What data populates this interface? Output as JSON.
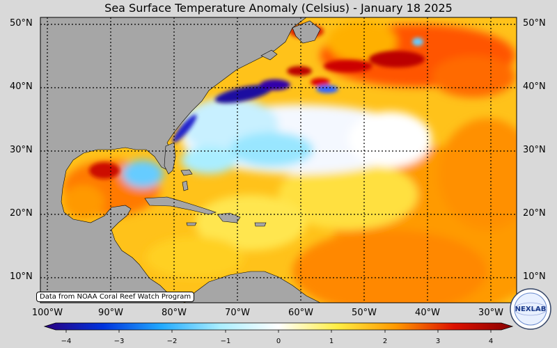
{
  "title": "Sea Surface Temperature Anomaly (Celsius) - January 18 2025",
  "credit": "Data from NOAA Coral Reef Watch Program",
  "logo_text": "NEXLAB",
  "lat_labels": [
    "50°N",
    "40°N",
    "30°N",
    "20°N",
    "10°N"
  ],
  "lon_labels": [
    "100°W",
    "90°W",
    "80°W",
    "70°W",
    "60°W",
    "50°W",
    "40°W",
    "30°W"
  ],
  "colorbar": {
    "ticks": [
      "−4",
      "−3",
      "−2",
      "−1",
      "0",
      "1",
      "2",
      "3",
      "4"
    ],
    "range": [
      -4,
      4
    ],
    "colors": [
      "#2a0080",
      "#0033dd",
      "#22aaff",
      "#aaeeff",
      "#ffffff",
      "#ffee44",
      "#ff9900",
      "#dd1100",
      "#880000"
    ]
  },
  "colors": {
    "land": "#a6a6a6",
    "grid": "#000000",
    "background": "#d9d9d9"
  }
}
